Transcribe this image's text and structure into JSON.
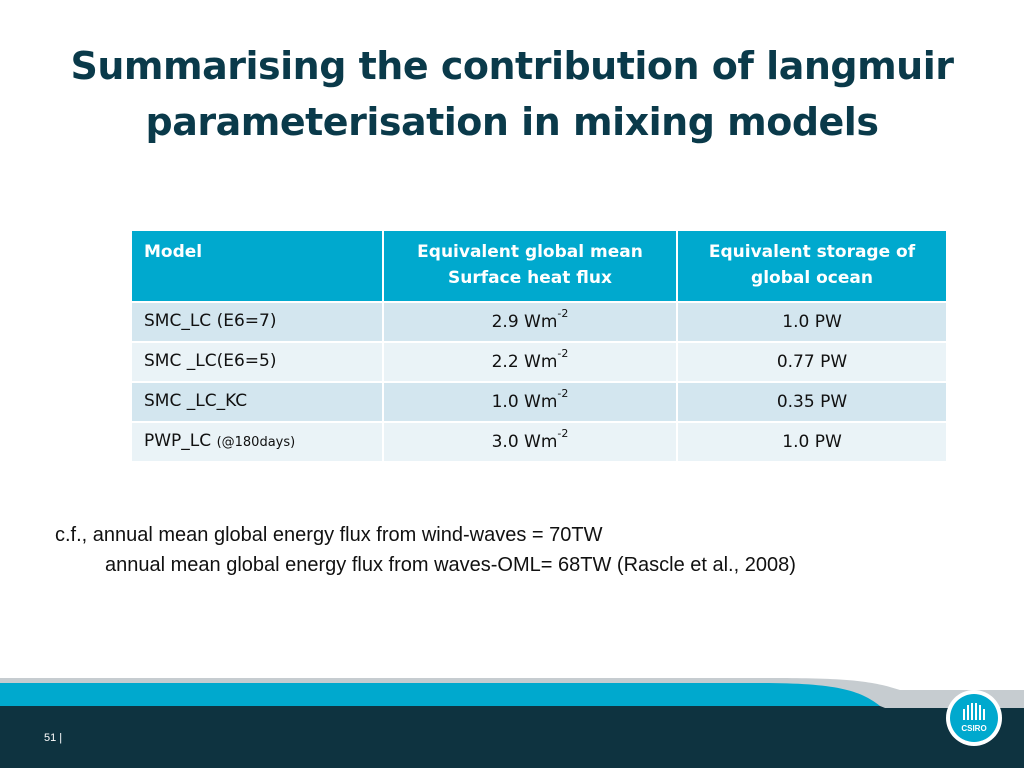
{
  "slide": {
    "title_line1": "Summarising the contribution of langmuir",
    "title_line2": "parameterisation in mixing models",
    "table": {
      "headers": [
        "Model",
        "Equivalent global mean Surface heat flux",
        "Equivalent storage of global ocean"
      ],
      "header_lines": [
        [
          "Model"
        ],
        [
          "Equivalent global mean",
          "Surface heat flux"
        ],
        [
          "Equivalent storage of",
          "global ocean"
        ]
      ],
      "rows": [
        {
          "model": "SMC_LC (E6=7)",
          "model_note": "",
          "flux": "2.9 Wm",
          "flux_exp": "-2",
          "storage": "1.0 PW"
        },
        {
          "model": "SMC _LC(E6=5)",
          "model_note": "",
          "flux": "2.2 Wm",
          "flux_exp": "-2",
          "storage": "0.77 PW"
        },
        {
          "model": "SMC _LC_KC",
          "model_note": "",
          "flux": "1.0 Wm",
          "flux_exp": "-2",
          "storage": "0.35 PW"
        },
        {
          "model": "PWP_LC ",
          "model_note": "(@180days)",
          "flux": "3.0 Wm",
          "flux_exp": "-2",
          "storage": "1.0 PW"
        }
      ]
    },
    "note_line1": "c.f., annual mean global energy flux from wind-waves = 70TW",
    "note_line2": "annual mean global energy flux from waves-OML= 68TW (Rascle et al., 2008)",
    "page_number": "51  |",
    "logo_text": "CSIRO",
    "colors": {
      "title": "#0a3a4a",
      "header": "#00a9ce",
      "row_odd": "#d3e6ef",
      "row_even": "#eaf3f7",
      "footer_dark": "#0e3340",
      "footer_accent": "#00a9ce"
    }
  }
}
